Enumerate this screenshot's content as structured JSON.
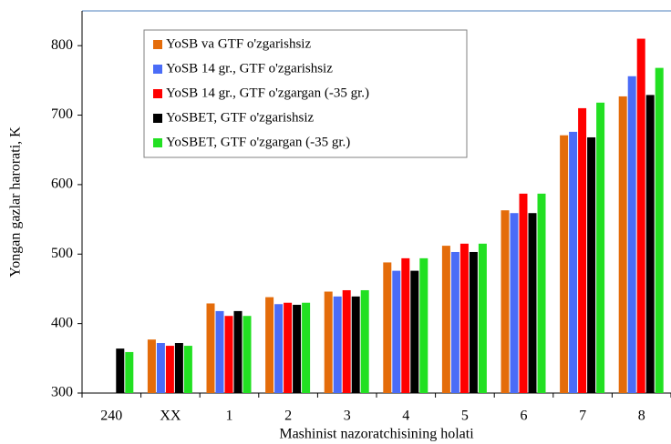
{
  "chart_data": {
    "type": "bar",
    "xlabel": "Mashinist nazoratchisining holati",
    "ylabel": "Yongan gazlar harorati, K",
    "categories": [
      "240",
      "XX",
      "1",
      "2",
      "3",
      "4",
      "5",
      "6",
      "7",
      "8"
    ],
    "series": [
      {
        "name": "YoSB va GTF o'zgarishsiz",
        "color": "#e46c0a",
        "values": [
          null,
          377,
          429,
          438,
          446,
          488,
          512,
          563,
          671,
          727
        ]
      },
      {
        "name": "YoSB 14 gr., GTF o'zgarishsiz",
        "color": "#4a6cf7",
        "values": [
          null,
          372,
          418,
          428,
          439,
          476,
          503,
          559,
          676,
          756
        ]
      },
      {
        "name": "YoSB 14 gr., GTF o'zgargan (-35 gr.)",
        "color": "#ff0000",
        "values": [
          null,
          368,
          411,
          430,
          448,
          494,
          515,
          587,
          710,
          810
        ]
      },
      {
        "name": "YoSBET, GTF o'zgarishsiz",
        "color": "#000000",
        "values": [
          364,
          372,
          418,
          427,
          439,
          476,
          503,
          559,
          668,
          729
        ]
      },
      {
        "name": "YoSBET, GTF o'zgargan (-35 gr.)",
        "color": "#22e022",
        "values": [
          359,
          368,
          411,
          430,
          448,
          494,
          515,
          587,
          718,
          768
        ]
      }
    ],
    "ylim": [
      300,
      850
    ],
    "yticks": [
      300,
      400,
      500,
      600,
      700,
      800
    ],
    "legend": "upper left"
  }
}
